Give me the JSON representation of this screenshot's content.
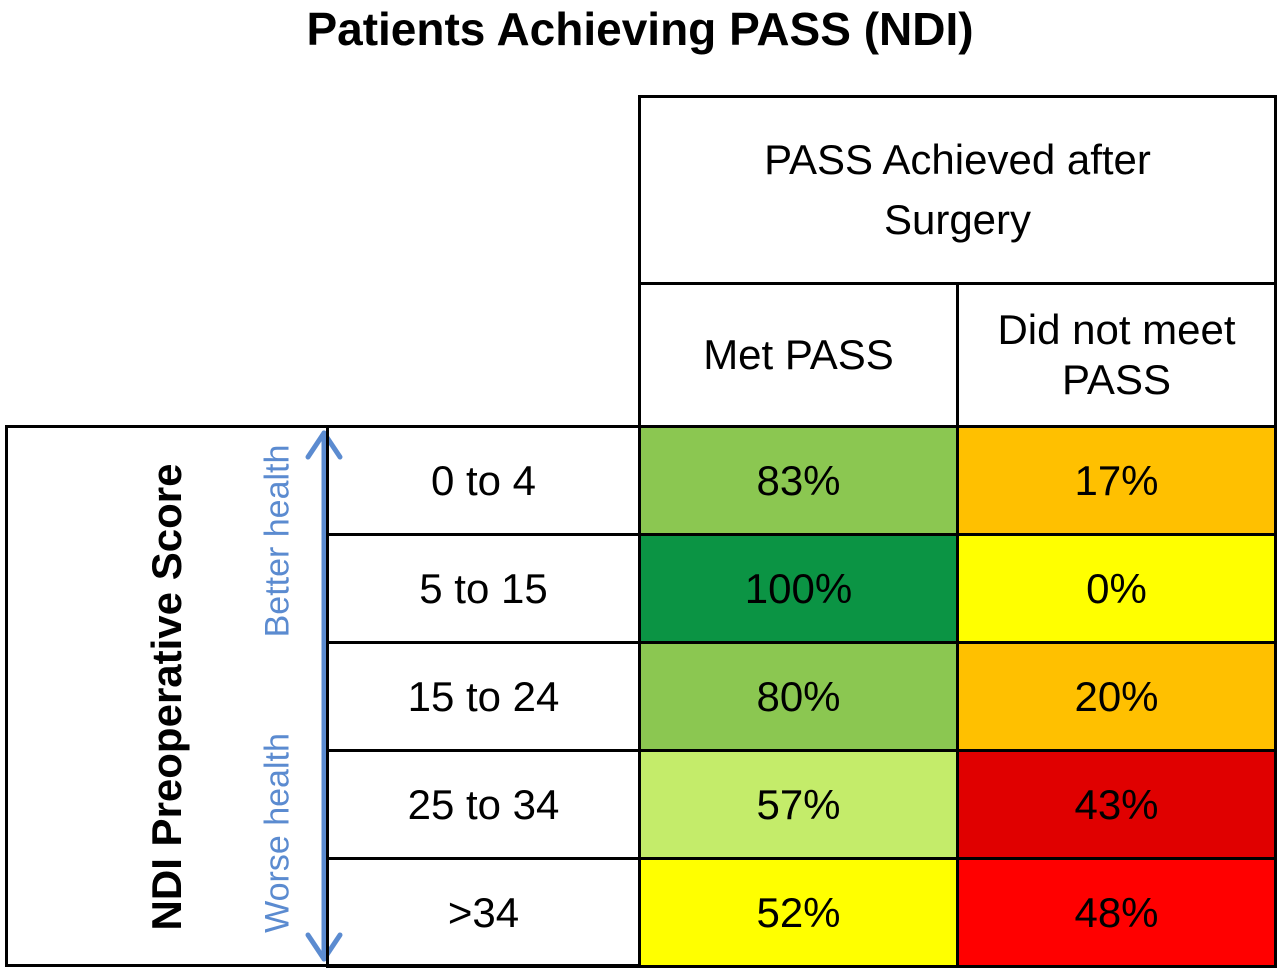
{
  "chart_data": {
    "type": "table",
    "title": "Patients Achieving PASS (NDI)",
    "column_group_header": "PASS Achieved after Surgery",
    "columns": [
      "Met PASS",
      "Did not meet PASS"
    ],
    "row_axis_title": "NDI Preoperative Score",
    "direction_labels": {
      "top": "Better health",
      "bottom": "Worse health"
    },
    "rows": [
      {
        "label": "0 to 4",
        "values": [
          "83%",
          "17%"
        ],
        "colors": [
          "#8bc751",
          "#ffc000"
        ]
      },
      {
        "label": "5 to 15",
        "values": [
          "100%",
          "0%"
        ],
        "colors": [
          "#0b9444",
          "#ffff00"
        ]
      },
      {
        "label": "15 to 24",
        "values": [
          "80%",
          "20%"
        ],
        "colors": [
          "#8bc751",
          "#ffc000"
        ]
      },
      {
        "label": "25 to 34",
        "values": [
          "57%",
          "43%"
        ],
        "colors": [
          "#c4ec6a",
          "#e00000"
        ]
      },
      {
        "label": ">34",
        "values": [
          "52%",
          "48%"
        ],
        "colors": [
          "#ffff00",
          "#ff0000"
        ]
      }
    ],
    "arrow_color": "#5b8bd0"
  }
}
